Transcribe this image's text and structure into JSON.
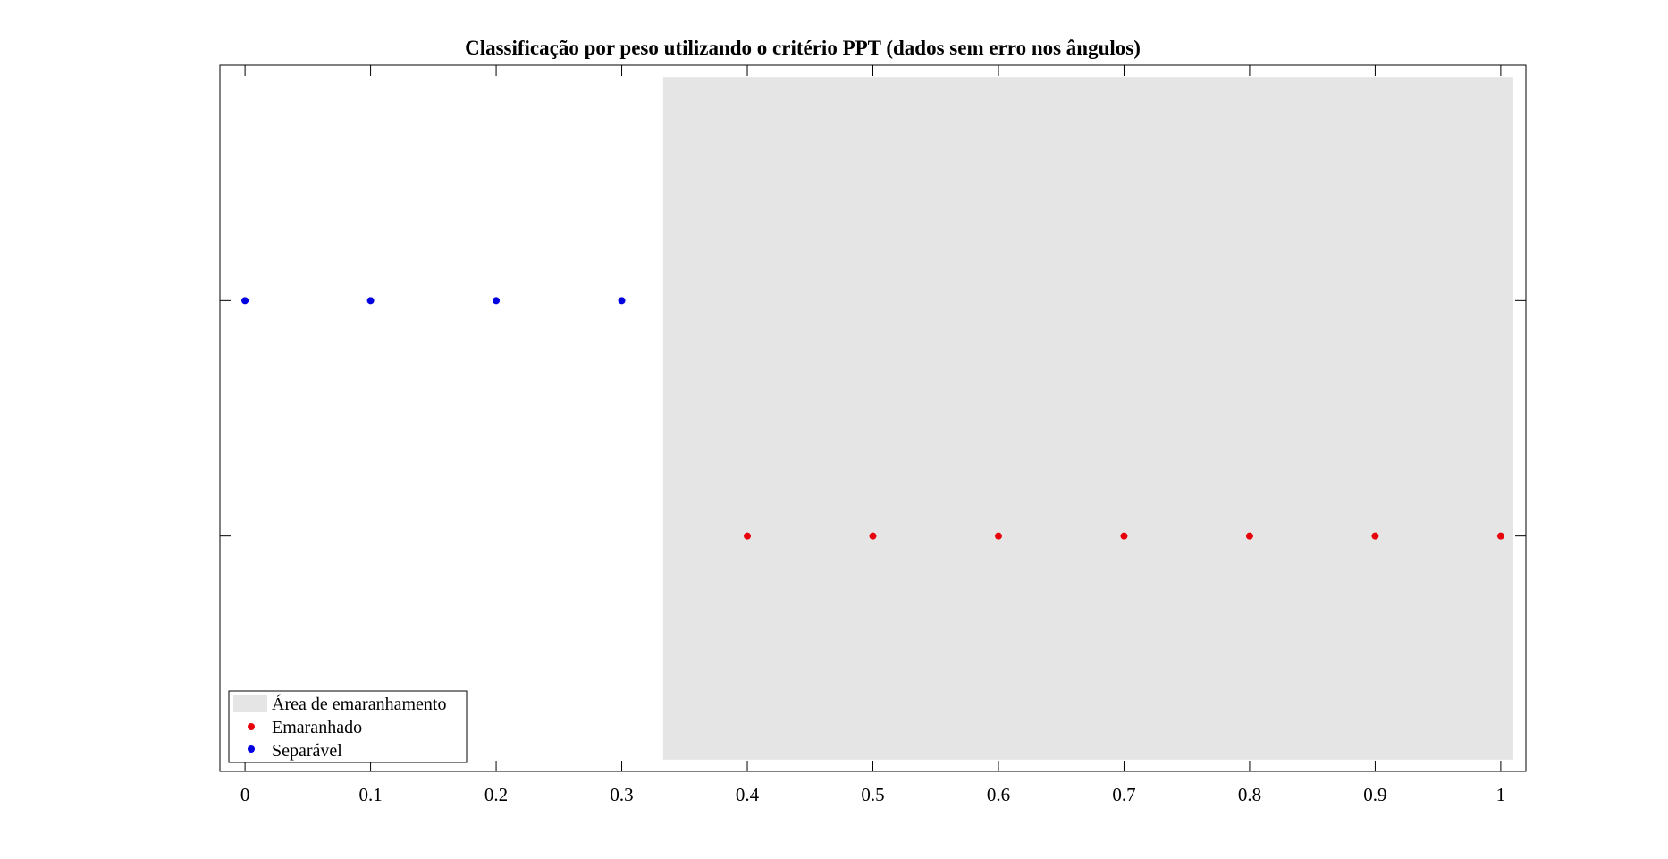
{
  "chart_data": {
    "type": "scatter",
    "title": "Classificação por peso utilizando o critério PPT (dados sem erro nos ângulos)",
    "xlabel": "",
    "ylabel": "",
    "xlim": [
      -0.02,
      1.02
    ],
    "ylim": [
      0,
      3
    ],
    "x_ticks": [
      "0",
      "0.1",
      "0.2",
      "0.3",
      "0.4",
      "0.5",
      "0.6",
      "0.7",
      "0.8",
      "0.9",
      "1"
    ],
    "y_ticks": [
      1,
      2
    ],
    "grid": false,
    "legend_position": "bottom-left",
    "shaded_region": {
      "name": "Área de emaranhamento",
      "x_range": [
        0.333,
        1.01
      ],
      "y_range": [
        0.05,
        2.95
      ],
      "color": "#e5e5e5"
    },
    "series": [
      {
        "name": "Emaranhado",
        "color": "#e8000b",
        "points": [
          [
            0.4,
            1
          ],
          [
            0.5,
            1
          ],
          [
            0.6,
            1
          ],
          [
            0.7,
            1
          ],
          [
            0.8,
            1
          ],
          [
            0.9,
            1
          ],
          [
            1.0,
            1
          ]
        ]
      },
      {
        "name": "Separável",
        "color": "#0000e0",
        "points": [
          [
            0.0,
            2
          ],
          [
            0.1,
            2
          ],
          [
            0.2,
            2
          ],
          [
            0.3,
            2
          ]
        ]
      }
    ]
  }
}
